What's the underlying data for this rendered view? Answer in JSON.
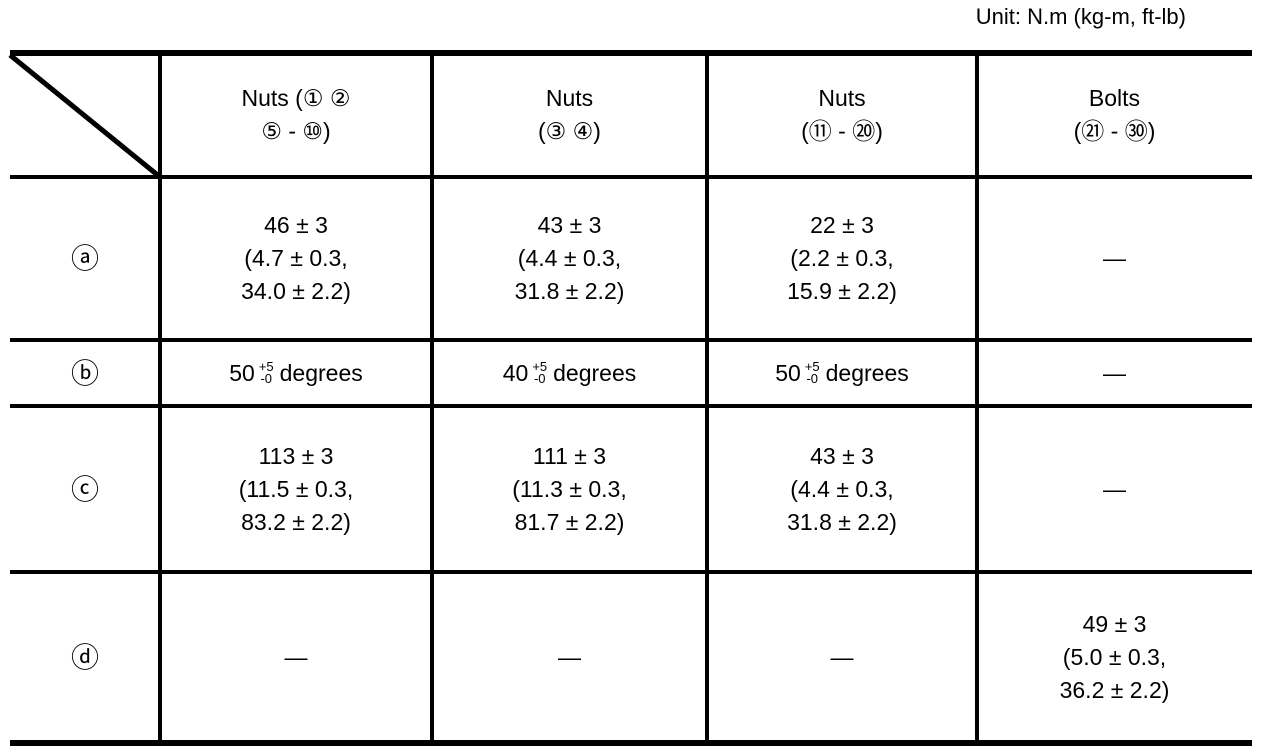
{
  "unit": "Unit: N.m (kg-m, ft-lb)",
  "table": {
    "header": [
      [
        "Nuts (① ②",
        "⑤ - ⑩)"
      ],
      [
        "Nuts",
        "(③ ④)"
      ],
      [
        "Nuts",
        "(⑪ - ⑳)"
      ],
      [
        "Bolts",
        "(㉑ - ㉚)"
      ]
    ],
    "rows": [
      {
        "label": "ⓐ",
        "cells": [
          [
            "46 ± 3",
            "(4.7 ± 0.3,",
            "34.0 ± 2.2)"
          ],
          [
            "43 ± 3",
            "(4.4 ± 0.3,",
            "31.8 ± 2.2)"
          ],
          [
            "22 ± 3",
            "(2.2 ± 0.3,",
            "15.9 ± 2.2)"
          ],
          [
            "—"
          ]
        ]
      },
      {
        "label": "ⓑ",
        "cells": [
          {
            "base": "50",
            "upper": "+5",
            "lower": "-0",
            "unit": "degrees"
          },
          {
            "base": "40",
            "upper": "+5",
            "lower": "-0",
            "unit": "degrees"
          },
          {
            "base": "50",
            "upper": "+5",
            "lower": "-0",
            "unit": "degrees"
          },
          [
            "—"
          ]
        ]
      },
      {
        "label": "ⓒ",
        "cells": [
          [
            "113 ± 3",
            "(11.5 ± 0.3,",
            "83.2 ± 2.2)"
          ],
          [
            "111 ± 3",
            "(11.3 ± 0.3,",
            "81.7 ± 2.2)"
          ],
          [
            "43 ± 3",
            "(4.4 ± 0.3,",
            "31.8 ± 2.2)"
          ],
          [
            "—"
          ]
        ]
      },
      {
        "label": "ⓓ",
        "cells": [
          [
            "—"
          ],
          [
            "—"
          ],
          [
            "—"
          ],
          [
            "49 ± 3",
            "(5.0 ± 0.3,",
            "36.2 ± 2.2)"
          ]
        ]
      }
    ]
  }
}
